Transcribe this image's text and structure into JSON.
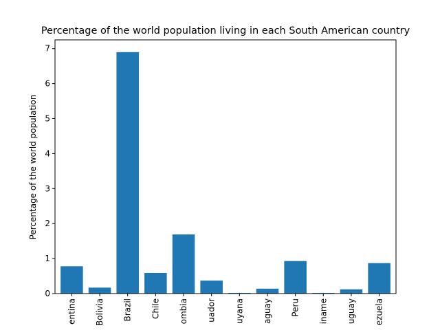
{
  "chart_data": {
    "type": "bar",
    "title": "Percentage of the world population living in each South American country",
    "xlabel": "",
    "ylabel": "Percentage of the world population",
    "categories": [
      "Argentina",
      "Bolivia",
      "Brazil",
      "Chile",
      "Colombia",
      "Ecuador",
      "Guyana",
      "Paraguay",
      "Peru",
      "Suriname",
      "Uruguay",
      "Venezuela"
    ],
    "tick_labels": [
      "entina",
      "Bolivia",
      "Brazil",
      "Chile",
      "ombia",
      "uador",
      "uyana",
      "aguay",
      "Peru",
      "iname",
      "uguay",
      "ezuela"
    ],
    "values": [
      0.78,
      0.17,
      6.9,
      0.59,
      1.69,
      0.37,
      0.02,
      0.14,
      0.93,
      0.02,
      0.12,
      0.87
    ],
    "ylim": [
      0,
      7.25
    ],
    "yticks": [
      0,
      1,
      2,
      3,
      4,
      5,
      6,
      7
    ],
    "grid": false,
    "bar_color": "#1f77b4"
  }
}
